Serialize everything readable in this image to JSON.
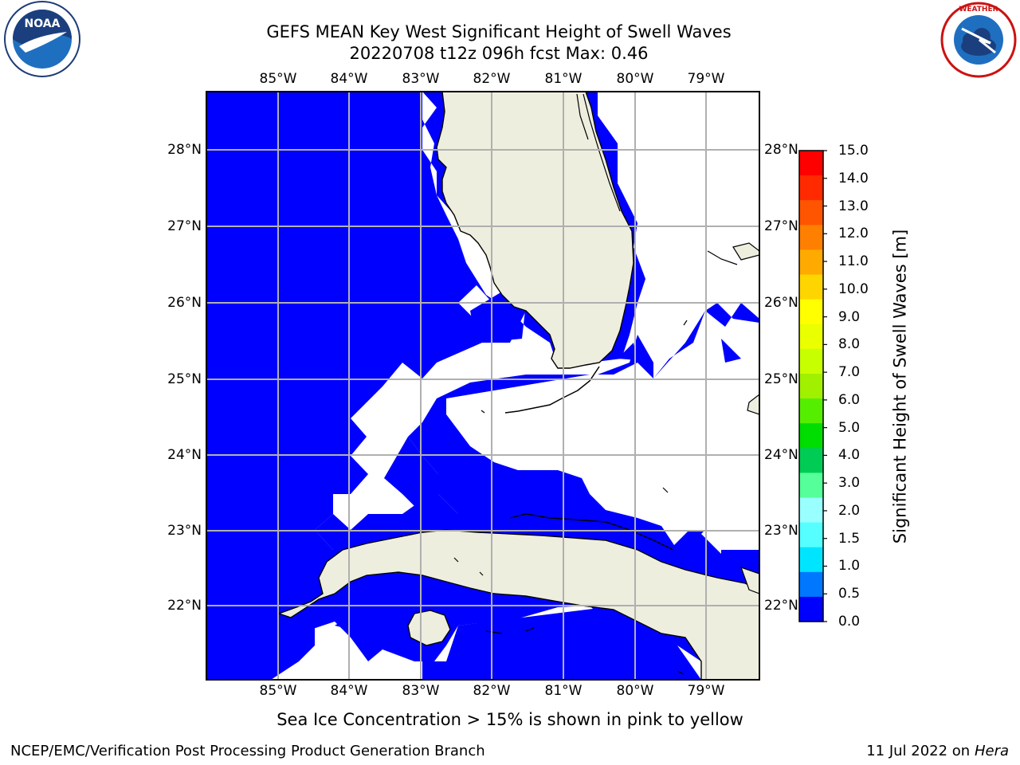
{
  "title": {
    "line1": "GEFS MEAN Key West Significant Height of Swell Waves",
    "line2": "20220708 t12z 096h fcst   Max: 0.46"
  },
  "logos": {
    "left": "noaa-logo",
    "right": "nws-logo"
  },
  "map": {
    "lon_ticks": [
      "85°W",
      "84°W",
      "83°W",
      "82°W",
      "81°W",
      "80°W",
      "79°W"
    ],
    "lat_ticks": [
      "28°N",
      "27°N",
      "26°N",
      "25°N",
      "24°N",
      "23°N",
      "22°N"
    ],
    "ocean_color": "#0000ff",
    "land_color": "#eeeedf",
    "grid_color": "#b0b0b0"
  },
  "colorbar": {
    "title": "Significant Height of Swell Waves [m]",
    "ticks": [
      "15.0",
      "14.0",
      "13.0",
      "12.0",
      "11.0",
      "10.0",
      "9.0",
      "8.0",
      "7.0",
      "6.0",
      "5.0",
      "4.0",
      "3.0",
      "2.0",
      "1.5",
      "1.0",
      "0.5",
      "0.0"
    ],
    "colors_top_to_bottom": [
      "#ff0000",
      "#ff2a00",
      "#ff5500",
      "#ff7f00",
      "#ffaa00",
      "#ffd500",
      "#ffff00",
      "#eaff00",
      "#c8ff00",
      "#a0f000",
      "#55ee00",
      "#00dd00",
      "#00cc55",
      "#55ff99",
      "#99ffff",
      "#55ffff",
      "#00e5ff",
      "#0077ff",
      "#0000ff"
    ]
  },
  "ice_note": "Sea Ice Concentration > 15% is shown in pink to yellow",
  "footer": {
    "left": "NCEP/EMC/Verification Post Processing Product Generation Branch",
    "right_date": "11 Jul 2022 on ",
    "right_host": "Hera"
  }
}
